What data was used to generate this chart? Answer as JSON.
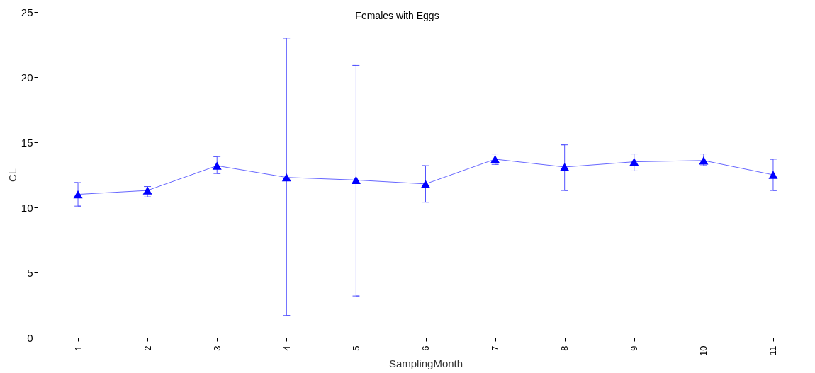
{
  "chart_data": {
    "type": "line",
    "title": "Females with Eggs",
    "xlabel": "SamplingMonth",
    "ylabel": "CL",
    "categories": [
      "1",
      "2",
      "3",
      "4",
      "5",
      "6",
      "7",
      "8",
      "9",
      "10",
      "11"
    ],
    "series": [
      {
        "color": "#0000ff",
        "values": [
          11.0,
          11.3,
          13.2,
          12.3,
          12.1,
          11.8,
          13.7,
          13.1,
          13.5,
          13.6,
          12.5
        ],
        "errors": [
          [
            10.1,
            11.9
          ],
          [
            10.8,
            11.6
          ],
          [
            12.6,
            13.9
          ],
          [
            1.7,
            23.0
          ],
          [
            3.2,
            20.9
          ],
          [
            10.4,
            13.2
          ],
          [
            13.3,
            14.1
          ],
          [
            11.3,
            14.8
          ],
          [
            12.8,
            14.1
          ],
          [
            13.2,
            14.1
          ],
          [
            11.3,
            13.7
          ]
        ]
      }
    ],
    "ylim": [
      0,
      25
    ],
    "yticks": [
      0,
      5,
      10,
      15,
      20,
      25
    ],
    "grid": false,
    "marker": "triangle",
    "line_style": "solid"
  }
}
